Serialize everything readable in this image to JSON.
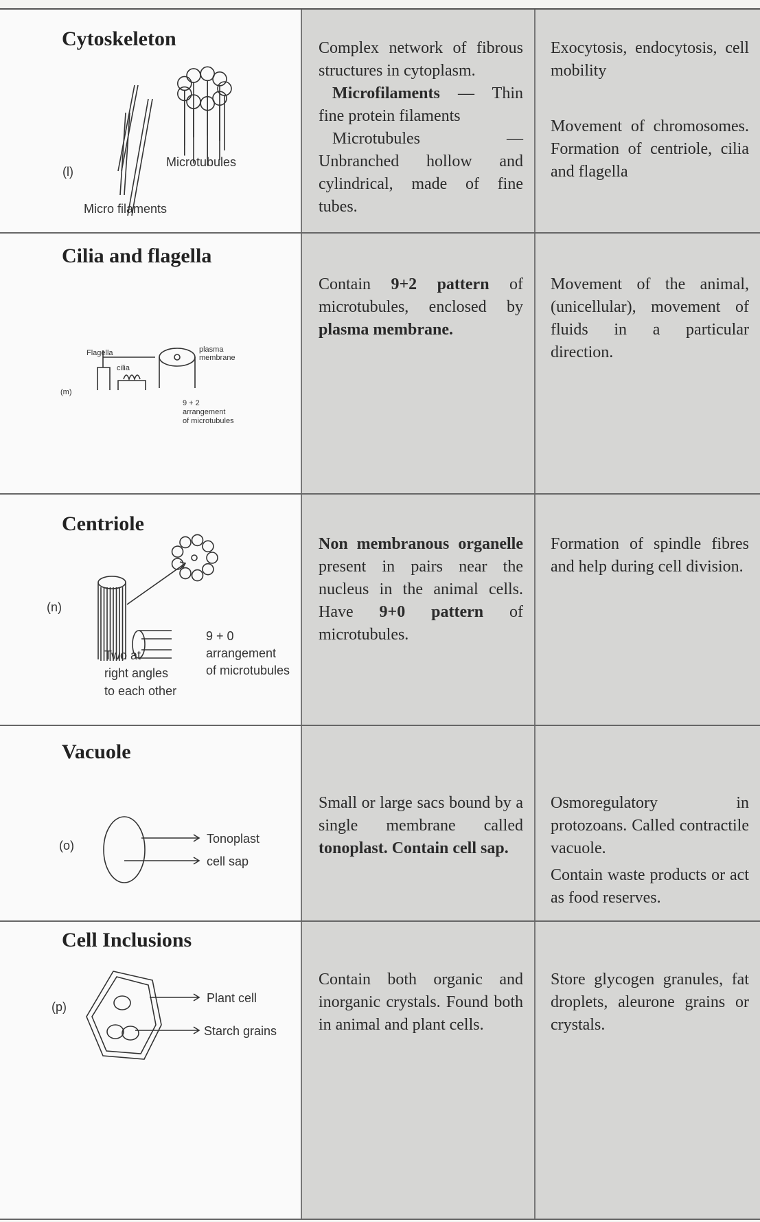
{
  "rows": [
    {
      "title": "Cytoskeleton",
      "labels": [
        [
          "(l)"
        ],
        [
          "Microtubules"
        ],
        [
          "Micro filaments"
        ]
      ],
      "description": [
        [
          {
            "text": "Complex network of fibrous structures in cytoplasm.",
            "bold": false
          }
        ],
        [
          {
            "text": "Microfilaments",
            "bold": true
          },
          {
            "text": " — Thin fine protein filaments",
            "bold": false
          }
        ],
        [
          {
            "text": "Microtubules — Unbranched hollow and cylindrical, made of fine tubes.",
            "bold": false
          }
        ]
      ],
      "function": [
        "Exocytosis, endocytosis, cell mobility",
        "Movement of chromosomes. Formation of centriole, cilia and flagella"
      ]
    },
    {
      "title": "Cilia and flagella",
      "labels": [
        [
          "Flagella"
        ],
        [
          "cilia"
        ],
        [
          "plasma",
          "membrane"
        ],
        [
          "(m)"
        ],
        [
          "9 + 2",
          "arrangement",
          "of microtubules"
        ]
      ],
      "description": [
        [
          {
            "text": "Contain ",
            "bold": false
          },
          {
            "text": "9+2 pattern",
            "bold": true
          },
          {
            "text": " of microtubules, enclosed by ",
            "bold": false
          },
          {
            "text": "plasma membrane.",
            "bold": true
          }
        ]
      ],
      "function": [
        "Movement of the animal, (unicellular), movement of fluids in a particular direction."
      ]
    },
    {
      "title": "Centriole",
      "labels": [
        [
          "(n)"
        ],
        [
          "9 + 0",
          "arrangement",
          "of microtubules"
        ],
        [
          "Two at",
          "right angles",
          "to each other"
        ]
      ],
      "description": [
        [
          {
            "text": "Non membranous organelle",
            "bold": true
          },
          {
            "text": " present in pairs near the nucleus in the animal cells. Have ",
            "bold": false
          },
          {
            "text": "9+0 pattern",
            "bold": true
          },
          {
            "text": " of microtubules.",
            "bold": false
          }
        ]
      ],
      "function": [
        "Formation of spindle fibres and help during cell division."
      ]
    },
    {
      "title": "Vacuole",
      "labels": [
        [
          "(o)"
        ],
        [
          "Tonoplast"
        ],
        [
          "cell sap"
        ]
      ],
      "description": [
        [
          {
            "text": "Small or large sacs bound by a single membrane called ",
            "bold": false
          },
          {
            "text": "tonoplast. Contain cell sap.",
            "bold": true
          }
        ]
      ],
      "function": [
        "Osmoregulatory in protozoans. Called contractile vacuole.",
        "Contain waste products or act as food reserves."
      ]
    },
    {
      "title": "Cell Inclusions",
      "labels": [
        [
          "(p)"
        ],
        [
          "Plant cell"
        ],
        [
          "Starch grains"
        ]
      ],
      "description": [
        [
          {
            "text": "Contain both organic and inorganic crystals. Found both in animal and plant cells.",
            "bold": false
          }
        ]
      ],
      "function": [
        "Store glycogen granules, fat droplets, aleurone grains or crystals."
      ]
    }
  ]
}
